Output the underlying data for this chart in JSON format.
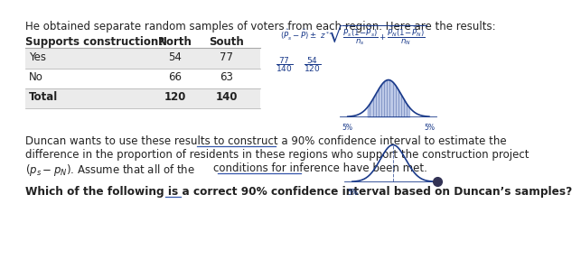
{
  "background_color": "#ffffff",
  "top_text": "He obtained separate random samples of voters from each region. Here are the results:",
  "table_headers": [
    "Supports construction?",
    "North",
    "South"
  ],
  "table_rows": [
    [
      "Yes",
      "54",
      "77"
    ],
    [
      "No",
      "66",
      "63"
    ],
    [
      "Total",
      "120",
      "140"
    ]
  ],
  "row_colors": [
    "#ebebeb",
    "#ffffff",
    "#ebebeb"
  ],
  "bold_rows": [
    2
  ],
  "body_lines": [
    "Duncan wants to use these results to construct a 90% confidence interval to estimate the",
    "difference in the proportion of residents in these regions who support the construction project",
    "(ps − pN). Assume that all of the conditions for inference have been met."
  ],
  "question": "Which of the following is a correct 90% confidence interval based on Duncan’s samples?",
  "text_color": "#222222",
  "blue_color": "#1a3a8a",
  "font_size": 8.5
}
